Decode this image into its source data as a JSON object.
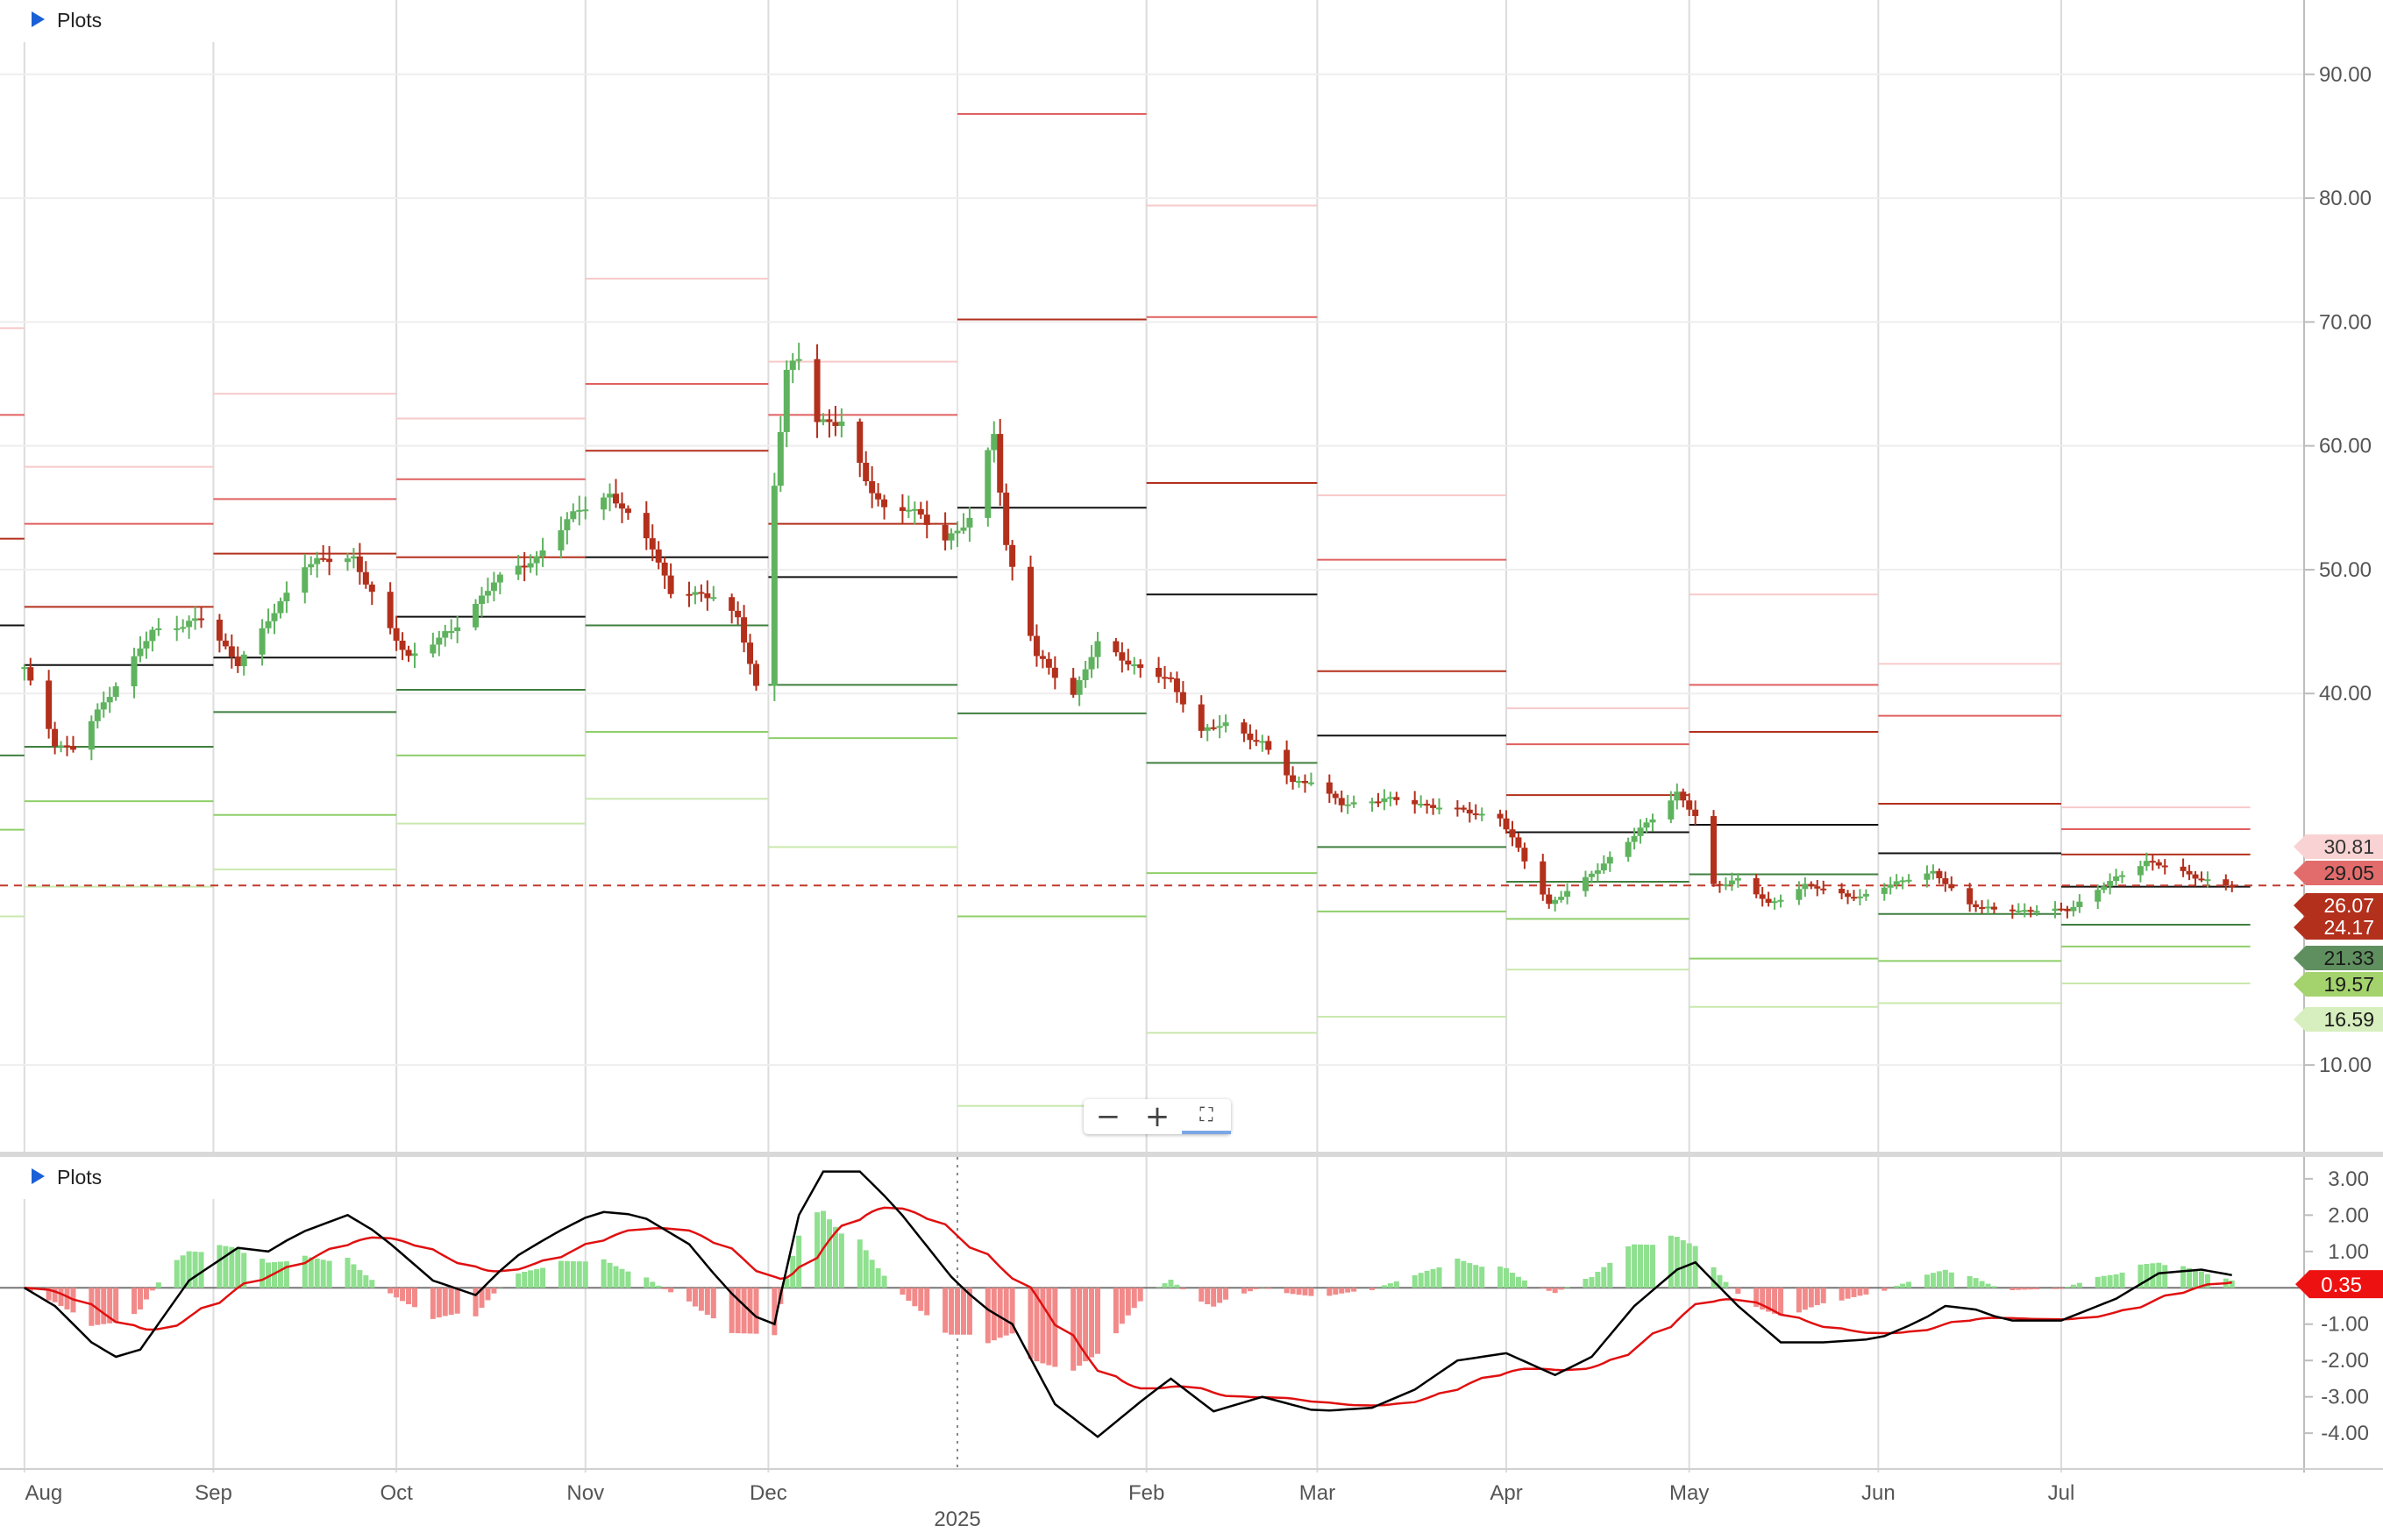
{
  "panels": [
    {
      "toggle": "Plots"
    },
    {
      "toggle": "Plots"
    }
  ],
  "zoom_controls": {
    "zoom_out_icon": "minus-icon",
    "zoom_in_icon": "plus-icon",
    "fullscreen_icon": "fullscreen-icon"
  },
  "colors": {
    "up": "#5fb35f",
    "down": "#b3301c",
    "macd": "#000000",
    "signal": "#e01010",
    "hist_pos": "#8fe08f",
    "hist_neg": "#f28a8a",
    "last": "#b3301c"
  },
  "chart_data": [
    {
      "type": "candlestick",
      "yticks": [
        "90.00",
        "80.00",
        "70.00",
        "60.00",
        "50.00",
        "40.00",
        "10.00"
      ],
      "ylim": [
        3,
        96
      ],
      "x_labels": [
        {
          "label": "Aug",
          "x": "2024-08-01"
        },
        {
          "label": "Sep",
          "x": "2024-09-01"
        },
        {
          "label": "Oct",
          "x": "2024-10-01"
        },
        {
          "label": "Nov",
          "x": "2024-11-01"
        },
        {
          "label": "Dec",
          "x": "2024-12-01"
        },
        {
          "label": "2025",
          "x": "2025-01-01"
        },
        {
          "label": "Feb",
          "x": "2025-02-01"
        },
        {
          "label": "Mar",
          "x": "2025-03-01"
        },
        {
          "label": "Apr",
          "x": "2025-04-01"
        },
        {
          "label": "May",
          "x": "2025-05-01"
        },
        {
          "label": "Jun",
          "x": "2025-06-01"
        },
        {
          "label": "Jul",
          "x": "2025-07-01"
        }
      ],
      "pivot_levels": [
        {
          "month": "2024-07",
          "P": 45.5,
          "R1": 52.5,
          "R2": 62.5,
          "R3": 69.5,
          "S1": 35,
          "S2": 29,
          "S3": 22
        },
        {
          "month": "2024-08",
          "P": 42.3,
          "R1": 47,
          "R2": 53.7,
          "R3": 58.3,
          "S1": 35.7,
          "S2": 31.3,
          "S3": 24.4
        },
        {
          "month": "2024-09",
          "P": 42.9,
          "R1": 51.3,
          "R2": 55.7,
          "R3": 64.2,
          "S1": 38.5,
          "S2": 30.2,
          "S3": 25.8
        },
        {
          "month": "2024-10",
          "P": 46.2,
          "R1": 51,
          "R2": 57.3,
          "R3": 62.2,
          "S1": 40.3,
          "S2": 35.0,
          "S3": 29.5
        },
        {
          "month": "2024-11",
          "P": 51,
          "R1": 59.6,
          "R2": 65,
          "R3": 73.5,
          "S1": 45.5,
          "S2": 36.9,
          "S3": 31.5
        },
        {
          "month": "2024-12",
          "P": 49.4,
          "R1": 53.7,
          "R2": 62.5,
          "R3": 66.8,
          "S1": 40.7,
          "S2": 36.4,
          "S3": 27.6
        },
        {
          "month": "2025-01",
          "P": 55,
          "R1": 70.2,
          "R2": 86.8,
          "R3": null,
          "S1": 38.4,
          "S2": 22.0,
          "S3": 6.7
        },
        {
          "month": "2025-02",
          "P": 48,
          "R1": 57,
          "R2": 70.4,
          "R3": 79.4,
          "S1": 34.4,
          "S2": 25.5,
          "S3": 12.6
        },
        {
          "month": "2025-03",
          "P": 36.6,
          "R1": 41.8,
          "R2": 50.8,
          "R3": 56,
          "S1": 27.6,
          "S2": 22.4,
          "S3": 13.9
        },
        {
          "month": "2025-04",
          "P": 28.8,
          "R1": 31.8,
          "R2": 35.9,
          "R3": 38.8,
          "S1": 24.8,
          "S2": 21.8,
          "S3": 17.7
        },
        {
          "month": "2025-05",
          "P": 29.4,
          "R1": 36.9,
          "R2": 40.7,
          "R3": 48,
          "S1": 25.4,
          "S2": 18.6,
          "S3": 14.7
        },
        {
          "month": "2025-06",
          "P": 27.1,
          "R1": 31.1,
          "R2": 38.2,
          "R3": 42.4,
          "S1": 22.2,
          "S2": 18.4,
          "S3": 15.0
        },
        {
          "month": "2025-07",
          "P": 24.4,
          "R1": 27,
          "R2": 29.05,
          "R3": 30.81,
          "S1": 21.33,
          "S2": 19.57,
          "S3": 16.59
        }
      ],
      "last_price": 24.5,
      "price_tags": [
        {
          "value": "30.81",
          "bg": "#f9d3d3",
          "fg": "#333333"
        },
        {
          "value": "29.05",
          "bg": "#e26b6b",
          "fg": "#222222"
        },
        {
          "value": "26.07",
          "bg": "#b3301c",
          "fg": "#ffffff"
        },
        {
          "value": "24.17",
          "bg": "#b3301c",
          "fg": "#ffffff"
        },
        {
          "value": "21.33",
          "bg": "#5f8f5f",
          "fg": "#1a1a1a"
        },
        {
          "value": "19.57",
          "bg": "#a4d36e",
          "fg": "#1a1a1a"
        },
        {
          "value": "16.59",
          "bg": "#d7efbe",
          "fg": "#1a1a1a"
        }
      ],
      "close_anchors": [
        [
          "2024-08-01",
          42
        ],
        [
          "2024-08-06",
          36
        ],
        [
          "2024-08-09",
          35.5
        ],
        [
          "2024-08-15",
          40
        ],
        [
          "2024-08-22",
          45
        ],
        [
          "2024-08-30",
          46
        ],
        [
          "2024-09-05",
          42.5
        ],
        [
          "2024-09-09",
          45
        ],
        [
          "2024-09-16",
          50.5
        ],
        [
          "2024-09-24",
          51
        ],
        [
          "2024-09-30",
          45
        ],
        [
          "2024-10-03",
          43
        ],
        [
          "2024-10-10",
          45
        ],
        [
          "2024-10-17",
          49
        ],
        [
          "2024-10-24",
          51
        ],
        [
          "2024-10-31",
          55
        ],
        [
          "2024-11-05",
          56
        ],
        [
          "2024-11-12",
          52
        ],
        [
          "2024-11-15",
          48
        ],
        [
          "2024-11-22",
          48
        ],
        [
          "2024-11-26",
          46
        ],
        [
          "2024-11-29",
          40.5
        ],
        [
          "2024-12-02",
          57
        ],
        [
          "2024-12-04",
          66
        ],
        [
          "2024-12-06",
          67
        ],
        [
          "2024-12-09",
          62
        ],
        [
          "2024-12-13",
          62
        ],
        [
          "2024-12-17",
          57
        ],
        [
          "2024-12-20",
          55
        ],
        [
          "2024-12-24",
          55
        ],
        [
          "2024-12-30",
          52.5
        ],
        [
          "2025-01-03",
          54
        ],
        [
          "2025-01-07",
          61
        ],
        [
          "2025-01-09",
          52
        ],
        [
          "2025-01-14",
          43
        ],
        [
          "2025-01-20",
          40
        ],
        [
          "2025-01-24",
          44
        ],
        [
          "2025-01-31",
          42
        ],
        [
          "2025-02-05",
          41
        ],
        [
          "2025-02-10",
          37
        ],
        [
          "2025-02-14",
          37.5
        ],
        [
          "2025-02-20",
          36
        ],
        [
          "2025-02-25",
          32.8
        ],
        [
          "2025-02-28",
          33
        ],
        [
          "2025-03-05",
          31
        ],
        [
          "2025-03-12",
          31.5
        ],
        [
          "2025-03-19",
          31
        ],
        [
          "2025-03-25",
          30.5
        ],
        [
          "2025-03-31",
          30
        ],
        [
          "2025-04-04",
          26.5
        ],
        [
          "2025-04-08",
          23
        ],
        [
          "2025-04-14",
          25
        ],
        [
          "2025-04-22",
          28.5
        ],
        [
          "2025-04-29",
          32
        ],
        [
          "2025-05-02",
          30
        ],
        [
          "2025-05-05",
          24.5
        ],
        [
          "2025-05-09",
          25
        ],
        [
          "2025-05-14",
          23
        ],
        [
          "2025-05-20",
          24.5
        ],
        [
          "2025-05-29",
          23.5
        ],
        [
          "2025-06-05",
          25
        ],
        [
          "2025-06-10",
          25.5
        ],
        [
          "2025-06-16",
          23
        ],
        [
          "2025-06-20",
          22.5
        ],
        [
          "2025-06-27",
          22.5
        ],
        [
          "2025-07-02",
          22.5
        ],
        [
          "2025-07-08",
          24.5
        ],
        [
          "2025-07-15",
          26.5
        ],
        [
          "2025-07-21",
          25.5
        ],
        [
          "2025-07-28",
          24.5
        ]
      ]
    },
    {
      "type": "macd",
      "yticks": [
        "3.00",
        "2.00",
        "1.00",
        "-1.00",
        "-2.00",
        "-3.00",
        "-4.00"
      ],
      "ylim": [
        -4.6,
        3.6
      ],
      "last_value_tag": "0.35",
      "macd_anchors": [
        [
          "2024-08-01",
          0
        ],
        [
          "2024-08-06",
          -0.5
        ],
        [
          "2024-08-12",
          -1.5
        ],
        [
          "2024-08-16",
          -1.9
        ],
        [
          "2024-08-20",
          -1.7
        ],
        [
          "2024-08-28",
          0.2
        ],
        [
          "2024-09-05",
          1.1
        ],
        [
          "2024-09-10",
          1.0
        ],
        [
          "2024-09-15",
          1.5
        ],
        [
          "2024-09-23",
          2.0
        ],
        [
          "2024-09-28",
          1.5
        ],
        [
          "2024-10-07",
          0.2
        ],
        [
          "2024-10-14",
          -0.2
        ],
        [
          "2024-10-20",
          0.8
        ],
        [
          "2024-10-27",
          1.5
        ],
        [
          "2024-11-03",
          2.1
        ],
        [
          "2024-11-10",
          2.0
        ],
        [
          "2024-11-18",
          1.2
        ],
        [
          "2024-11-24",
          0
        ],
        [
          "2024-11-29",
          -0.8
        ],
        [
          "2024-12-01",
          -1.8
        ],
        [
          "2024-12-03",
          -0.2
        ],
        [
          "2024-12-06",
          2.0
        ],
        [
          "2024-12-10",
          3.2
        ],
        [
          "2024-12-16",
          3.2
        ],
        [
          "2024-12-22",
          2.2
        ],
        [
          "2024-12-31",
          0.3
        ],
        [
          "2025-01-05",
          -0.5
        ],
        [
          "2025-01-10",
          -1.0
        ],
        [
          "2025-01-17",
          -3.2
        ],
        [
          "2025-01-24",
          -4.1
        ],
        [
          "2025-02-01",
          -3.0
        ],
        [
          "2025-02-05",
          -2.5
        ],
        [
          "2025-02-12",
          -3.4
        ],
        [
          "2025-02-20",
          -3.0
        ],
        [
          "2025-03-01",
          -3.4
        ],
        [
          "2025-03-10",
          -3.3
        ],
        [
          "2025-03-17",
          -2.8
        ],
        [
          "2025-03-24",
          -2.0
        ],
        [
          "2025-04-01",
          -1.8
        ],
        [
          "2025-04-09",
          -2.4
        ],
        [
          "2025-04-15",
          -1.9
        ],
        [
          "2025-04-22",
          -0.5
        ],
        [
          "2025-04-29",
          0.5
        ],
        [
          "2025-05-02",
          0.7
        ],
        [
          "2025-05-09",
          -0.5
        ],
        [
          "2025-05-16",
          -1.5
        ],
        [
          "2025-05-23",
          -1.5
        ],
        [
          "2025-06-01",
          -1.4
        ],
        [
          "2025-06-08",
          -0.9
        ],
        [
          "2025-06-12",
          -0.5
        ],
        [
          "2025-06-17",
          -0.6
        ],
        [
          "2025-06-22",
          -0.9
        ],
        [
          "2025-07-01",
          -0.9
        ],
        [
          "2025-07-10",
          -0.3
        ],
        [
          "2025-07-17",
          0.4
        ],
        [
          "2025-07-24",
          0.5
        ],
        [
          "2025-07-29",
          0.35
        ]
      ]
    }
  ]
}
